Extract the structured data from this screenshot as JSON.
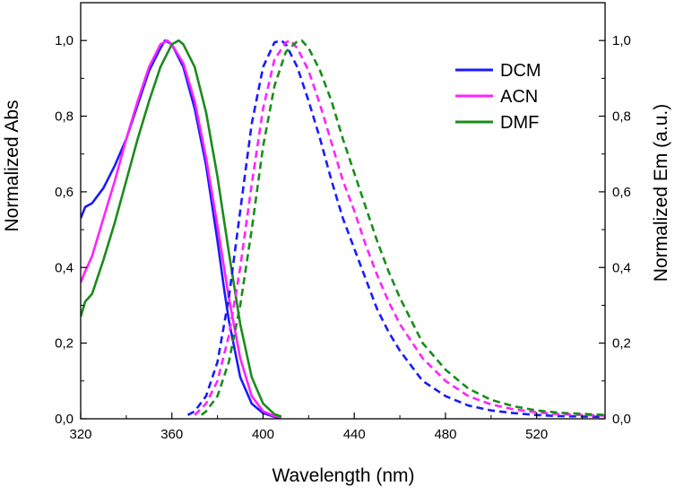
{
  "chart_data": {
    "type": "line",
    "xlabel": "Wavelength (nm)",
    "ylabel_left": "Normalized Abs",
    "ylabel_right": "Normalized Em (a.u.)",
    "xlim": [
      320,
      550
    ],
    "ylim": [
      0,
      1.1
    ],
    "x_ticks": [
      320,
      360,
      400,
      440,
      480,
      520
    ],
    "x_tick_labels": [
      "320",
      "360",
      "400",
      "440",
      "480",
      "520"
    ],
    "y_ticks": [
      0,
      0.2,
      0.4,
      0.6,
      0.8,
      1.0
    ],
    "y_tick_labels": [
      "0,0",
      "0,2",
      "0,4",
      "0,6",
      "0,8",
      "1,0"
    ],
    "legend": {
      "position": "top-right",
      "entries": [
        {
          "name": "DCM",
          "color": "#1a1aff"
        },
        {
          "name": "ACN",
          "color": "#ff22ff"
        },
        {
          "name": "DMF",
          "color": "#1a8c1a"
        }
      ]
    },
    "series": [
      {
        "name": "DCM",
        "kind": "absorption",
        "style": "solid",
        "color": "#1a1aff",
        "x": [
          320,
          322,
          325,
          330,
          335,
          340,
          345,
          350,
          355,
          357,
          360,
          365,
          370,
          375,
          380,
          383,
          385,
          390,
          395,
          400,
          405,
          408
        ],
        "y": [
          0.53,
          0.56,
          0.57,
          0.61,
          0.67,
          0.74,
          0.83,
          0.92,
          0.98,
          1.0,
          0.99,
          0.93,
          0.82,
          0.67,
          0.47,
          0.34,
          0.26,
          0.11,
          0.04,
          0.015,
          0.005,
          0.003
        ]
      },
      {
        "name": "ACN",
        "kind": "absorption",
        "style": "solid",
        "color": "#ff22ff",
        "x": [
          320,
          322,
          325,
          330,
          335,
          340,
          345,
          350,
          355,
          358,
          360,
          365,
          370,
          375,
          380,
          385,
          390,
          395,
          400,
          405,
          408
        ],
        "y": [
          0.36,
          0.39,
          0.43,
          0.53,
          0.63,
          0.74,
          0.84,
          0.93,
          0.99,
          1.0,
          0.99,
          0.94,
          0.84,
          0.69,
          0.51,
          0.32,
          0.16,
          0.06,
          0.02,
          0.007,
          0.004
        ]
      },
      {
        "name": "DMF",
        "kind": "absorption",
        "style": "solid",
        "color": "#1a8c1a",
        "x": [
          320,
          322,
          325,
          330,
          335,
          340,
          345,
          350,
          355,
          360,
          363,
          365,
          370,
          375,
          380,
          385,
          390,
          395,
          400,
          405,
          408
        ],
        "y": [
          0.27,
          0.31,
          0.33,
          0.42,
          0.52,
          0.63,
          0.74,
          0.84,
          0.93,
          0.99,
          1.0,
          0.99,
          0.93,
          0.81,
          0.64,
          0.44,
          0.25,
          0.11,
          0.04,
          0.012,
          0.006
        ]
      },
      {
        "name": "DCM",
        "kind": "emission",
        "style": "dashed",
        "color": "#1a1aff",
        "x": [
          367,
          370,
          375,
          380,
          385,
          390,
          395,
          400,
          405,
          408,
          410,
          415,
          420,
          425,
          430,
          435,
          440,
          445,
          450,
          455,
          460,
          470,
          480,
          490,
          500,
          510,
          520,
          530,
          540,
          550
        ],
        "y": [
          0.01,
          0.02,
          0.06,
          0.15,
          0.32,
          0.55,
          0.78,
          0.93,
          0.995,
          1.0,
          0.99,
          0.93,
          0.84,
          0.74,
          0.63,
          0.53,
          0.45,
          0.37,
          0.29,
          0.23,
          0.18,
          0.1,
          0.06,
          0.035,
          0.022,
          0.015,
          0.01,
          0.007,
          0.006,
          0.005
        ]
      },
      {
        "name": "ACN",
        "kind": "emission",
        "style": "dashed",
        "color": "#ff22ff",
        "x": [
          370,
          375,
          380,
          385,
          390,
          395,
          400,
          405,
          410,
          412,
          415,
          420,
          425,
          430,
          435,
          440,
          445,
          450,
          455,
          460,
          470,
          480,
          490,
          500,
          510,
          520,
          530,
          540,
          550
        ],
        "y": [
          0.01,
          0.04,
          0.1,
          0.22,
          0.4,
          0.62,
          0.82,
          0.95,
          0.995,
          1.0,
          0.98,
          0.92,
          0.83,
          0.73,
          0.63,
          0.55,
          0.46,
          0.38,
          0.31,
          0.25,
          0.16,
          0.1,
          0.06,
          0.038,
          0.025,
          0.017,
          0.012,
          0.01,
          0.008
        ]
      },
      {
        "name": "DMF",
        "kind": "emission",
        "style": "dashed",
        "color": "#1a8c1a",
        "x": [
          373,
          375,
          380,
          385,
          390,
          395,
          400,
          405,
          410,
          415,
          417,
          420,
          425,
          430,
          435,
          440,
          445,
          450,
          455,
          460,
          465,
          470,
          480,
          490,
          500,
          510,
          520,
          530,
          540,
          550
        ],
        "y": [
          0.01,
          0.02,
          0.06,
          0.15,
          0.3,
          0.5,
          0.72,
          0.88,
          0.97,
          0.998,
          1.0,
          0.98,
          0.92,
          0.84,
          0.74,
          0.65,
          0.56,
          0.47,
          0.39,
          0.32,
          0.26,
          0.2,
          0.13,
          0.08,
          0.05,
          0.033,
          0.022,
          0.016,
          0.013,
          0.01
        ]
      }
    ]
  }
}
